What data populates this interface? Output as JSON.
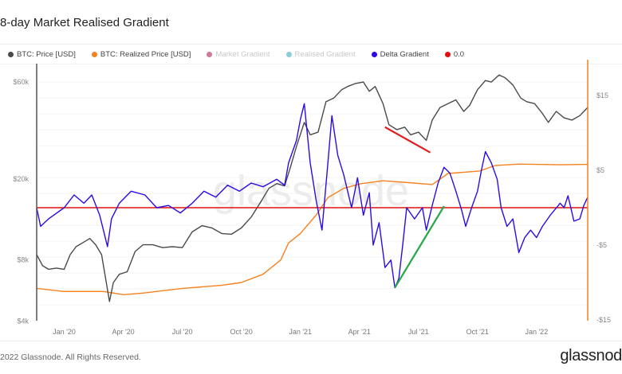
{
  "title": "8-day Market Realised Gradient",
  "legend": [
    {
      "label": "BTC: Price [USD]",
      "color": "#4a4a4a",
      "active": true
    },
    {
      "label": "BTC: Realized Price [USD]",
      "color": "#f7801f",
      "active": true
    },
    {
      "label": "Market Gradient",
      "color": "#c9547a",
      "active": false
    },
    {
      "label": "Realised Gradient",
      "color": "#6dbfcf",
      "active": false
    },
    {
      "label": "Delta Gradient",
      "color": "#2b0be8",
      "active": true
    },
    {
      "label": "0.0",
      "color": "#e01010",
      "active": true
    }
  ],
  "watermark": "glassnode",
  "footer": {
    "copyright": "2022 Glassnode. All Rights Reserved.",
    "brand": "glassnod"
  },
  "chart_data": {
    "type": "line",
    "title": "8-day Market Realised Gradient",
    "x_unit": "months since Jan 2020",
    "x_range": [
      -1.4,
      26.6
    ],
    "x_ticks": [
      {
        "t": 0,
        "label": "Jan '20"
      },
      {
        "t": 3,
        "label": "Apr '20"
      },
      {
        "t": 6,
        "label": "Jul '20"
      },
      {
        "t": 9,
        "label": "Oct '20"
      },
      {
        "t": 12,
        "label": "Jan '21"
      },
      {
        "t": 15,
        "label": "Apr '21"
      },
      {
        "t": 18,
        "label": "Jul '21"
      },
      {
        "t": 21,
        "label": "Oct '21"
      },
      {
        "t": 24,
        "label": "Jan '22"
      }
    ],
    "y_left": {
      "scale": "log",
      "range": [
        4000,
        75000
      ],
      "ticks": [
        {
          "v": 60000,
          "label": "$60k"
        },
        {
          "v": 20000,
          "label": "$20k"
        },
        {
          "v": 8000,
          "label": "$8k"
        },
        {
          "v": 4000,
          "label": "$4k"
        }
      ]
    },
    "y_right": {
      "scale": "linear",
      "range": [
        -15,
        15
      ],
      "ticks": [
        {
          "v": 15,
          "label": "$15"
        },
        {
          "v": 5,
          "label": "$5"
        },
        {
          "v": -5,
          "label": "-$5"
        },
        {
          "v": -15,
          "label": "-$15"
        }
      ]
    },
    "series": [
      {
        "name": "BTC: Price [USD]",
        "axis": "left",
        "color": "#4a4a4a",
        "points": [
          [
            -1.4,
            8500
          ],
          [
            -1.1,
            7500
          ],
          [
            -0.8,
            7200
          ],
          [
            -0.4,
            7300
          ],
          [
            0,
            7200
          ],
          [
            0.3,
            8500
          ],
          [
            0.6,
            9300
          ],
          [
            1.0,
            9800
          ],
          [
            1.3,
            10200
          ],
          [
            1.6,
            9500
          ],
          [
            1.9,
            8500
          ],
          [
            2.3,
            5000
          ],
          [
            2.5,
            6200
          ],
          [
            2.8,
            6800
          ],
          [
            3.2,
            7000
          ],
          [
            3.6,
            8800
          ],
          [
            4.0,
            9500
          ],
          [
            4.5,
            9500
          ],
          [
            5.0,
            9200
          ],
          [
            5.5,
            9300
          ],
          [
            6.0,
            9200
          ],
          [
            6.5,
            11000
          ],
          [
            7.0,
            11800
          ],
          [
            7.5,
            11500
          ],
          [
            8.0,
            10800
          ],
          [
            8.5,
            10700
          ],
          [
            9.0,
            11500
          ],
          [
            9.5,
            13000
          ],
          [
            10.0,
            15500
          ],
          [
            10.4,
            18000
          ],
          [
            10.8,
            19000
          ],
          [
            11.2,
            18500
          ],
          [
            11.5,
            23000
          ],
          [
            11.8,
            29000
          ],
          [
            12.2,
            38000
          ],
          [
            12.5,
            33000
          ],
          [
            12.9,
            34000
          ],
          [
            13.3,
            48000
          ],
          [
            13.7,
            50000
          ],
          [
            14.1,
            55000
          ],
          [
            14.4,
            57000
          ],
          [
            14.8,
            59000
          ],
          [
            15.2,
            60000
          ],
          [
            15.5,
            54000
          ],
          [
            15.8,
            57000
          ],
          [
            16.2,
            47000
          ],
          [
            16.5,
            37000
          ],
          [
            16.9,
            35000
          ],
          [
            17.3,
            36000
          ],
          [
            17.6,
            33000
          ],
          [
            18.0,
            34000
          ],
          [
            18.4,
            31000
          ],
          [
            18.7,
            39000
          ],
          [
            19.1,
            45000
          ],
          [
            19.5,
            47000
          ],
          [
            19.9,
            49000
          ],
          [
            20.3,
            43000
          ],
          [
            20.6,
            46000
          ],
          [
            21.0,
            55000
          ],
          [
            21.4,
            61000
          ],
          [
            21.7,
            60000
          ],
          [
            22.1,
            65000
          ],
          [
            22.4,
            63000
          ],
          [
            22.8,
            58000
          ],
          [
            23.2,
            50000
          ],
          [
            23.5,
            48000
          ],
          [
            23.9,
            47000
          ],
          [
            24.3,
            42000
          ],
          [
            24.6,
            38000
          ],
          [
            25.0,
            43000
          ],
          [
            25.4,
            40000
          ],
          [
            25.8,
            39000
          ],
          [
            26.2,
            41000
          ],
          [
            26.6,
            45000
          ]
        ]
      },
      {
        "name": "BTC: Realized Price [USD]",
        "axis": "left",
        "color": "#f7801f",
        "points": [
          [
            -1.4,
            5800
          ],
          [
            0,
            5600
          ],
          [
            2,
            5600
          ],
          [
            3,
            5400
          ],
          [
            4,
            5500
          ],
          [
            6,
            5800
          ],
          [
            8,
            6000
          ],
          [
            9,
            6200
          ],
          [
            10.1,
            6800
          ],
          [
            11,
            8000
          ],
          [
            11.4,
            9700
          ],
          [
            12,
            10800
          ],
          [
            12.8,
            13300
          ],
          [
            13.4,
            16200
          ],
          [
            14.2,
            18000
          ],
          [
            15.1,
            19000
          ],
          [
            16.2,
            19600
          ],
          [
            17.5,
            19200
          ],
          [
            18.7,
            18800
          ],
          [
            19.5,
            21300
          ],
          [
            21.1,
            21900
          ],
          [
            21.9,
            23300
          ],
          [
            23.1,
            23700
          ],
          [
            25.2,
            23500
          ],
          [
            26.6,
            23600
          ]
        ]
      },
      {
        "name": "Delta Gradient",
        "axis": "right",
        "color": "#2b0be8",
        "points": [
          [
            -1.4,
            0
          ],
          [
            -1.2,
            -2.5
          ],
          [
            -0.8,
            -1.5
          ],
          [
            0,
            0
          ],
          [
            0.5,
            1.7
          ],
          [
            1.0,
            0.6
          ],
          [
            1.4,
            1.7
          ],
          [
            1.8,
            -1
          ],
          [
            2.2,
            -5.2
          ],
          [
            2.4,
            -1.5
          ],
          [
            2.8,
            0.6
          ],
          [
            3.4,
            2.2
          ],
          [
            4.1,
            1.7
          ],
          [
            4.7,
            0
          ],
          [
            5.3,
            0.3
          ],
          [
            5.9,
            -0.7
          ],
          [
            6.5,
            0.6
          ],
          [
            7.1,
            2.2
          ],
          [
            7.7,
            1.4
          ],
          [
            8.3,
            3
          ],
          [
            8.9,
            2.2
          ],
          [
            9.5,
            3.3
          ],
          [
            10.1,
            2.8
          ],
          [
            10.8,
            3.8
          ],
          [
            11.2,
            3
          ],
          [
            11.4,
            6
          ],
          [
            11.8,
            9
          ],
          [
            12.0,
            11.8
          ],
          [
            12.2,
            13.9
          ],
          [
            12.5,
            6
          ],
          [
            12.8,
            1
          ],
          [
            13.1,
            -3
          ],
          [
            13.4,
            6
          ],
          [
            13.6,
            12.3
          ],
          [
            13.9,
            7
          ],
          [
            14.2,
            4.4
          ],
          [
            14.6,
            0
          ],
          [
            14.9,
            4
          ],
          [
            15.2,
            -1
          ],
          [
            15.5,
            2
          ],
          [
            15.7,
            -5
          ],
          [
            16.0,
            -2
          ],
          [
            16.3,
            -8
          ],
          [
            16.6,
            -7
          ],
          [
            16.8,
            -10.7
          ],
          [
            17.0,
            -9.5
          ],
          [
            17.2,
            -5
          ],
          [
            17.4,
            0
          ],
          [
            17.8,
            -1.5
          ],
          [
            18.2,
            0
          ],
          [
            18.4,
            -3
          ],
          [
            18.7,
            0.3
          ],
          [
            19.0,
            3.3
          ],
          [
            19.3,
            5.4
          ],
          [
            19.6,
            4.6
          ],
          [
            19.9,
            2.2
          ],
          [
            20.2,
            -0.4
          ],
          [
            20.4,
            -2.5
          ],
          [
            20.7,
            0
          ],
          [
            21.0,
            2.2
          ],
          [
            21.2,
            5
          ],
          [
            21.4,
            7.5
          ],
          [
            21.7,
            6
          ],
          [
            22.0,
            3.8
          ],
          [
            22.2,
            0
          ],
          [
            22.5,
            -2.5
          ],
          [
            22.8,
            -1.5
          ],
          [
            23.1,
            -6
          ],
          [
            23.4,
            -4
          ],
          [
            23.7,
            -3
          ],
          [
            24.0,
            -4
          ],
          [
            24.3,
            -2.5
          ],
          [
            24.7,
            -1
          ],
          [
            25.2,
            0.6
          ],
          [
            25.4,
            0
          ],
          [
            25.6,
            1.6
          ],
          [
            25.9,
            -1.8
          ],
          [
            26.2,
            -1.5
          ],
          [
            26.4,
            0.3
          ],
          [
            26.6,
            1.4
          ]
        ]
      },
      {
        "name": "0.0",
        "axis": "right",
        "color": "#e01010",
        "points": [
          [
            -1.4,
            0
          ],
          [
            26.6,
            0
          ]
        ]
      }
    ],
    "annotations": [
      {
        "type": "trendline",
        "color": "#e02020",
        "axis": "left",
        "from": [
          16.3,
          36000
        ],
        "to": [
          18.6,
          27000
        ]
      },
      {
        "type": "trendline",
        "color": "#22a845",
        "axis": "right",
        "from": [
          16.8,
          -10.7
        ],
        "to": [
          19.3,
          0.2
        ]
      }
    ]
  }
}
